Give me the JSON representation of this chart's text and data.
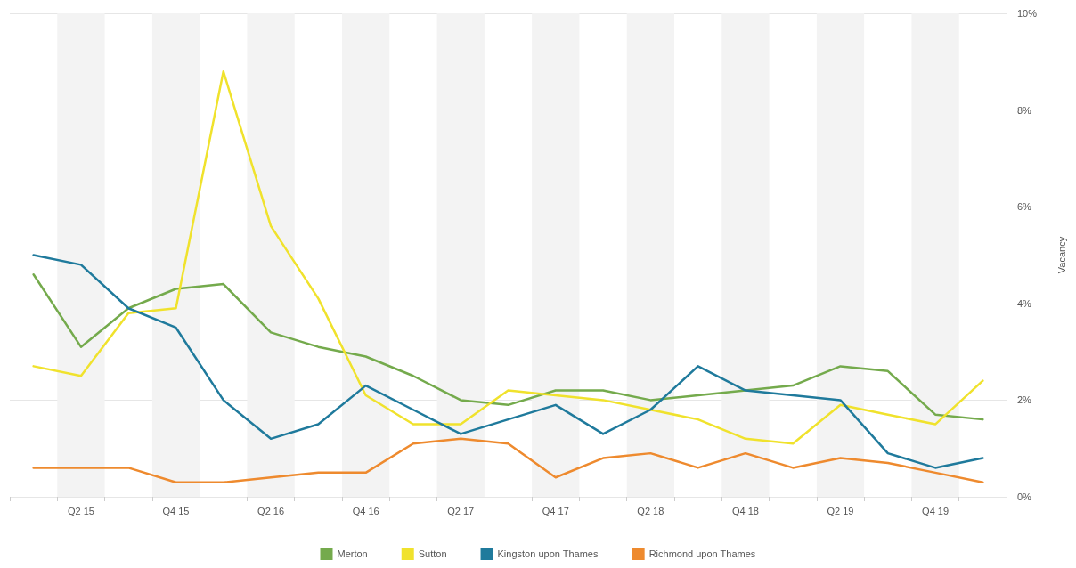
{
  "chart_data": {
    "type": "line",
    "categories": [
      null,
      "Q2 15",
      null,
      "Q4 15",
      null,
      "Q2 16",
      null,
      "Q4 16",
      null,
      "Q2 17",
      null,
      "Q4 17",
      null,
      "Q2 18",
      null,
      "Q4 18",
      null,
      "Q2 19",
      null,
      "Q4 19",
      null
    ],
    "ylabel": "Vacancy",
    "ylim": [
      0,
      10
    ],
    "yticks": [
      {
        "value": 0,
        "label": "0%"
      },
      {
        "value": 2,
        "label": "2%"
      },
      {
        "value": 4,
        "label": "4%"
      },
      {
        "value": 6,
        "label": "6%"
      },
      {
        "value": 8,
        "label": "8%"
      },
      {
        "value": 10,
        "label": "10%"
      }
    ],
    "grid": true,
    "legend": "bottom",
    "marker": "none",
    "line_style": "solid",
    "series": [
      {
        "name": "Merton",
        "color": "#74aa4c",
        "values": [
          4.6,
          3.1,
          3.9,
          4.3,
          4.4,
          3.4,
          3.1,
          2.9,
          2.5,
          2.0,
          1.9,
          2.2,
          2.2,
          2.0,
          2.1,
          2.2,
          2.3,
          2.7,
          2.6,
          1.7,
          1.6
        ]
      },
      {
        "name": "Sutton",
        "color": "#f0e22c",
        "values": [
          2.7,
          2.5,
          3.8,
          3.9,
          8.8,
          5.6,
          4.1,
          2.1,
          1.5,
          1.5,
          2.2,
          2.1,
          2.0,
          1.8,
          1.6,
          1.2,
          1.1,
          1.9,
          1.7,
          1.5,
          2.4
        ]
      },
      {
        "name": "Kingston upon Thames",
        "color": "#1f7a9c",
        "values": [
          5.0,
          4.8,
          3.9,
          3.5,
          2.0,
          1.2,
          1.5,
          2.3,
          1.8,
          1.3,
          1.6,
          1.9,
          1.3,
          1.8,
          2.7,
          2.2,
          2.1,
          2.0,
          0.9,
          0.6,
          0.8
        ]
      },
      {
        "name": "Richmond upon Thames",
        "color": "#ee8a2e",
        "values": [
          0.6,
          0.6,
          0.6,
          0.3,
          0.3,
          0.4,
          0.5,
          0.5,
          1.1,
          1.2,
          1.1,
          0.4,
          0.8,
          0.9,
          0.6,
          0.9,
          0.6,
          0.8,
          0.7,
          0.5,
          0.3
        ]
      }
    ]
  }
}
